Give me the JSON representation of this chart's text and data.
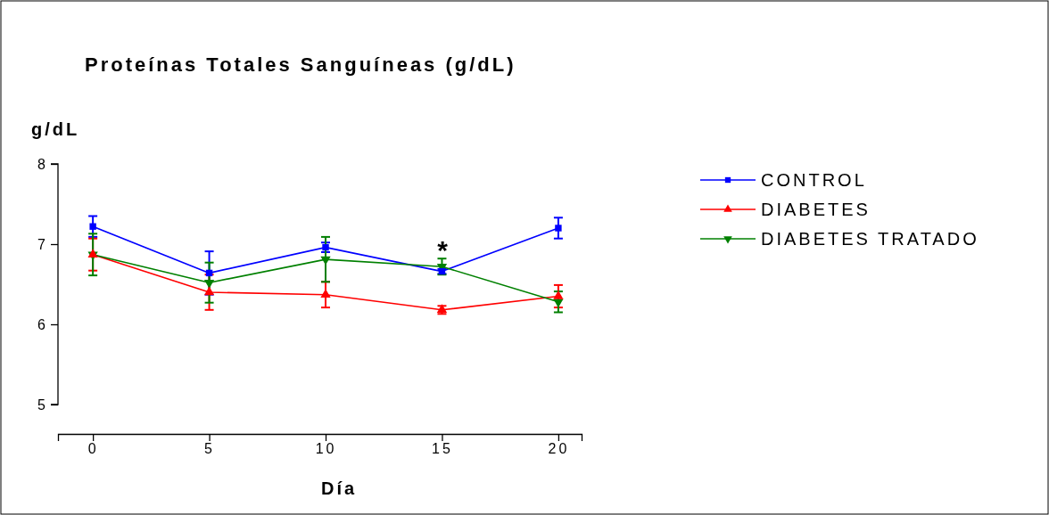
{
  "chart_data": {
    "type": "line",
    "title": "Proteínas Totales Sanguíneas (g/dL)",
    "xlabel": "Día",
    "ylabel": "g/dL",
    "x": [
      0,
      5,
      10,
      15,
      20
    ],
    "xlim": [
      -1.5,
      21
    ],
    "xticks": [
      0,
      5,
      10,
      15,
      20
    ],
    "ylim": [
      5,
      8
    ],
    "yticks": [
      5,
      6,
      7,
      8
    ],
    "grid": false,
    "legend": "right",
    "series": [
      {
        "name": "CONTROL",
        "color": "#0000ff",
        "marker": "square",
        "values": [
          7.22,
          6.64,
          6.96,
          6.66,
          7.2
        ],
        "errors": [
          0.13,
          0.27,
          0.06,
          0.03,
          0.13
        ]
      },
      {
        "name": "DIABETES",
        "color": "#ff0000",
        "marker": "triangle",
        "values": [
          6.87,
          6.4,
          6.37,
          6.18,
          6.35
        ],
        "errors": [
          0.2,
          0.22,
          0.16,
          0.05,
          0.14
        ]
      },
      {
        "name": "DIABETES TRATADO",
        "color": "#008000",
        "marker": "triangle-down",
        "values": [
          6.87,
          6.52,
          6.81,
          6.72,
          6.28
        ],
        "errors": [
          0.26,
          0.25,
          0.28,
          0.1,
          0.13
        ]
      }
    ],
    "annotations": [
      "*"
    ]
  }
}
